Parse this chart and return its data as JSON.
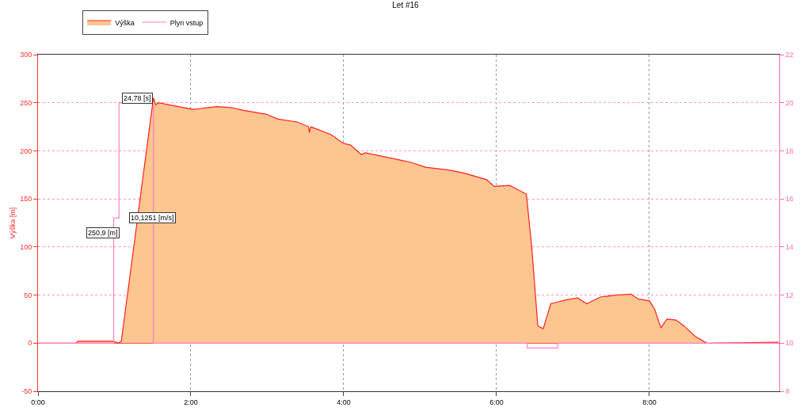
{
  "chart_data": {
    "type": "line",
    "title": "Let #16",
    "ylabel": "Výška [m]",
    "xlim": [
      0,
      9.7
    ],
    "xticks": [
      {
        "value": 0,
        "label": "0:00"
      },
      {
        "value": 2,
        "label": "2:00"
      },
      {
        "value": 4,
        "label": "4:00"
      },
      {
        "value": 6,
        "label": "6:00"
      },
      {
        "value": 8,
        "label": "8:00"
      }
    ],
    "ylim": [
      -50,
      300
    ],
    "yticks": [
      -50,
      0,
      50,
      100,
      150,
      200,
      250,
      300
    ],
    "y2lim": [
      8,
      22
    ],
    "y2ticks": [
      8,
      10,
      12,
      14,
      16,
      18,
      20,
      22
    ],
    "grid": true,
    "legend": "top left",
    "marker": "none",
    "line_style": "solid",
    "series": [
      {
        "name": "Výška",
        "type": "area",
        "color": "#fdc590",
        "x": [
          0,
          0.5,
          0.52,
          0.99,
          1.05,
          1.09,
          1.51,
          1.54,
          1.58,
          1.7,
          2.03,
          2.34,
          2.53,
          2.69,
          2.99,
          3.14,
          3.39,
          3.54,
          3.55,
          3.57,
          3.83,
          3.99,
          4.09,
          4.23,
          4.28,
          4.58,
          4.88,
          5.07,
          5.37,
          5.57,
          5.87,
          5.97,
          6.17,
          6.39,
          6.46,
          6.54,
          6.61,
          6.71,
          6.76,
          6.91,
          7.06,
          7.18,
          7.36,
          7.56,
          7.76,
          7.85,
          8.0,
          8.07,
          8.15,
          8.23,
          8.35,
          8.45,
          8.6,
          8.75,
          9.69
        ],
        "values": [
          0,
          0,
          2,
          2,
          0,
          2,
          255,
          248,
          250,
          248,
          243,
          246,
          245,
          242,
          238,
          233,
          230,
          225,
          219,
          225,
          217,
          208,
          206,
          196,
          198,
          193,
          188,
          183,
          180,
          177,
          170,
          163,
          164,
          155,
          100,
          18,
          15,
          41,
          42,
          45,
          47,
          41,
          48,
          50,
          51,
          46,
          44,
          35,
          16,
          25,
          24,
          18,
          7,
          0,
          1
        ]
      },
      {
        "name": "Plyn vstup",
        "axis": "y2",
        "color": "#ff80c0",
        "x": [
          0,
          0.99,
          0.99,
          1.06,
          1.06,
          1.51,
          1.51,
          6.4,
          6.4,
          6.8,
          6.8,
          9.69
        ],
        "values": [
          10,
          10,
          15.2,
          15.2,
          20,
          20,
          10,
          10,
          9.8,
          9.8,
          10,
          10
        ]
      }
    ],
    "annotations": [
      {
        "text": "24,78 [s]",
        "x": 1.3,
        "y": 255
      },
      {
        "text": "250,9 [m]",
        "x": 0.85,
        "y": 115
      },
      {
        "text": "10,1251 [m/s]",
        "x": 1.5,
        "y": 130
      }
    ]
  }
}
